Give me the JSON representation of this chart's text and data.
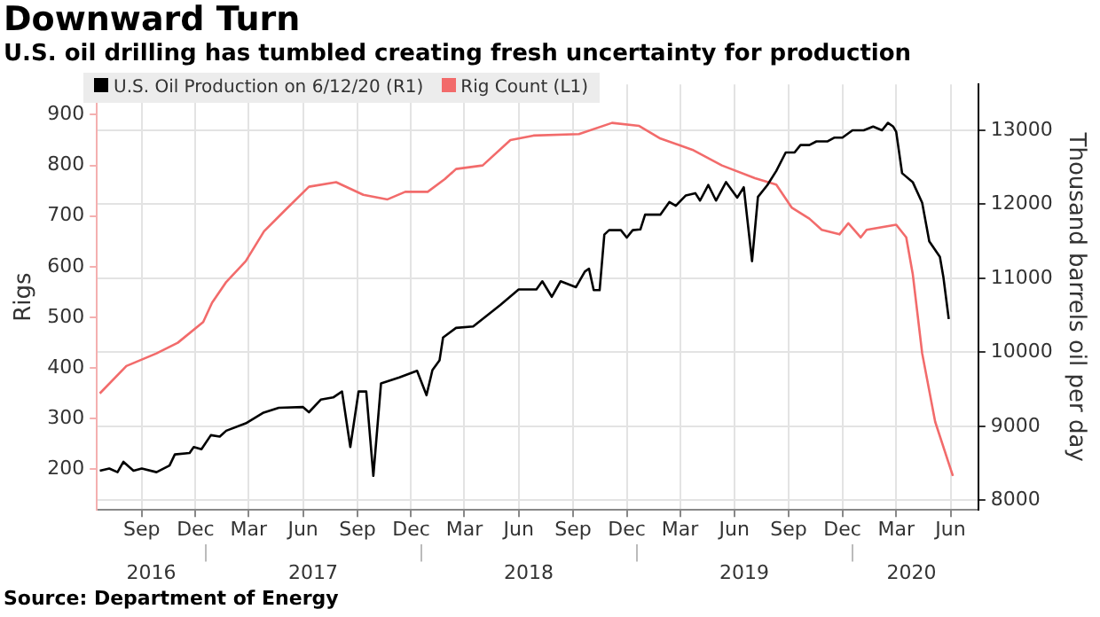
{
  "chart_data": {
    "type": "line",
    "title": "Downward Turn",
    "subtitle": "U.S. oil drilling has tumbled creating fresh uncertainty for production",
    "ylabel": "Rigs",
    "y2label": "Thousand barrels oil per day",
    "annotations": [
      "Source: Department of Energy"
    ],
    "xlim": [
      "2016-07-01",
      "2020-08-01"
    ],
    "xticks": [
      {
        "value": "2016-09-15",
        "label": "Sep"
      },
      {
        "value": "2016-12-15",
        "label": "Dec"
      },
      {
        "value": "2017-03-15",
        "label": "Mar"
      },
      {
        "value": "2017-06-15",
        "label": "Jun"
      },
      {
        "value": "2017-09-15",
        "label": "Sep"
      },
      {
        "value": "2017-12-15",
        "label": "Dec"
      },
      {
        "value": "2018-03-15",
        "label": "Mar"
      },
      {
        "value": "2018-06-15",
        "label": "Jun"
      },
      {
        "value": "2018-09-15",
        "label": "Sep"
      },
      {
        "value": "2018-12-15",
        "label": "Dec"
      },
      {
        "value": "2019-03-15",
        "label": "Mar"
      },
      {
        "value": "2019-06-15",
        "label": "Jun"
      },
      {
        "value": "2019-09-15",
        "label": "Sep"
      },
      {
        "value": "2019-12-15",
        "label": "Dec"
      },
      {
        "value": "2020-03-15",
        "label": "Mar"
      },
      {
        "value": "2020-06-15",
        "label": "Jun"
      }
    ],
    "x2lim": [
      "2016-07-01",
      "2020-08-01"
    ],
    "x2ticks": [
      {
        "value": "2016-10-01",
        "label": "2016"
      },
      {
        "value": "2017-01-01",
        "label": null
      },
      {
        "value": "2017-07-02",
        "label": "2017"
      },
      {
        "value": "2018-01-01",
        "label": null
      },
      {
        "value": "2018-07-02",
        "label": "2018"
      },
      {
        "value": "2019-01-01",
        "label": null
      },
      {
        "value": "2019-07-02",
        "label": "2019"
      },
      {
        "value": "2020-01-01",
        "label": null
      },
      {
        "value": "2020-04-10",
        "label": "2020"
      }
    ],
    "ylim": [
      120,
      960
    ],
    "yticks": [
      200,
      300,
      400,
      500,
      600,
      700,
      800,
      900
    ],
    "y2lim": [
      7870,
      13620
    ],
    "y2ticks": [
      8000,
      9000,
      10000,
      11000,
      12000,
      13000
    ],
    "grid": true,
    "legend": "top left",
    "marker": "none",
    "line_style": "solid",
    "series": [
      {
        "name": "U.S. Oil Production on 6/12/20 (R1)",
        "color": "#000000",
        "axis": "y2",
        "x": [
          "2016-07-06",
          "2016-07-22",
          "2016-08-05",
          "2016-08-15",
          "2016-09-01",
          "2016-09-15",
          "2016-10-10",
          "2016-11-01",
          "2016-11-10",
          "2016-12-05",
          "2016-12-12",
          "2016-12-25",
          "2017-01-10",
          "2017-01-25",
          "2017-02-05",
          "2017-03-10",
          "2017-04-08",
          "2017-05-05",
          "2017-06-15",
          "2017-06-25",
          "2017-07-15",
          "2017-08-05",
          "2017-08-20",
          "2017-09-03",
          "2017-09-17",
          "2017-09-30",
          "2017-10-12",
          "2017-10-25",
          "2017-11-25",
          "2017-12-25",
          "2018-01-10",
          "2018-01-20",
          "2018-02-01",
          "2018-02-07",
          "2018-03-01",
          "2018-03-30",
          "2018-05-15",
          "2018-06-15",
          "2018-07-15",
          "2018-07-25",
          "2018-08-10",
          "2018-08-25",
          "2018-09-20",
          "2018-10-05",
          "2018-10-12",
          "2018-10-20",
          "2018-10-30",
          "2018-11-07",
          "2018-11-15",
          "2018-12-05",
          "2018-12-15",
          "2018-12-25",
          "2019-01-07",
          "2019-01-15",
          "2019-02-10",
          "2019-02-25",
          "2019-03-08",
          "2019-03-25",
          "2019-04-10",
          "2019-04-18",
          "2019-05-02",
          "2019-05-15",
          "2019-06-01",
          "2019-06-20",
          "2019-07-01",
          "2019-07-15",
          "2019-07-25",
          "2019-08-10",
          "2019-08-25",
          "2019-09-10",
          "2019-09-25",
          "2019-10-05",
          "2019-10-20",
          "2019-11-01",
          "2019-11-20",
          "2019-12-01",
          "2019-12-15",
          "2020-01-01",
          "2020-01-20",
          "2020-02-05",
          "2020-02-20",
          "2020-03-01",
          "2020-03-10",
          "2020-03-15",
          "2020-03-25",
          "2020-04-12",
          "2020-04-28",
          "2020-05-10",
          "2020-05-28",
          "2020-06-03",
          "2020-06-12"
        ],
        "values": [
          8400,
          8430,
          8380,
          8520,
          8400,
          8430,
          8380,
          8470,
          8620,
          8640,
          8720,
          8690,
          8880,
          8860,
          8940,
          9040,
          9180,
          9250,
          9260,
          9190,
          9360,
          9390,
          9470,
          8720,
          9470,
          9470,
          8330,
          9580,
          9660,
          9750,
          9420,
          9760,
          9890,
          10200,
          10330,
          10350,
          10640,
          10850,
          10850,
          10960,
          10750,
          10960,
          10880,
          11090,
          11130,
          10840,
          10840,
          11590,
          11650,
          11650,
          11550,
          11650,
          11660,
          11860,
          11860,
          12030,
          11980,
          12120,
          12150,
          12050,
          12260,
          12050,
          12300,
          12090,
          12230,
          11230,
          12100,
          12260,
          12450,
          12700,
          12700,
          12800,
          12800,
          12850,
          12850,
          12900,
          12900,
          13000,
          13000,
          13050,
          13000,
          13100,
          13050,
          12980,
          12420,
          12300,
          12020,
          11500,
          11290,
          11010,
          10450
        ]
      },
      {
        "name": "Rig Count (L1)",
        "color": "#f26b6b",
        "x": [
          "2016-07-06",
          "2016-08-20",
          "2016-10-10",
          "2016-11-15",
          "2016-12-28",
          "2017-01-12",
          "2017-02-05",
          "2017-03-10",
          "2017-04-10",
          "2017-05-15",
          "2017-06-25",
          "2017-08-10",
          "2017-09-25",
          "2017-11-05",
          "2017-12-05",
          "2018-01-12",
          "2018-02-10",
          "2018-03-01",
          "2018-04-15",
          "2018-06-01",
          "2018-07-10",
          "2018-09-25",
          "2018-11-20",
          "2019-01-05",
          "2019-02-10",
          "2019-04-05",
          "2019-05-25",
          "2019-07-20",
          "2019-08-25",
          "2019-09-20",
          "2019-10-20",
          "2019-11-10",
          "2019-12-10",
          "2019-12-25",
          "2020-01-15",
          "2020-01-25",
          "2020-03-15",
          "2020-04-01",
          "2020-04-12",
          "2020-04-28",
          "2020-05-20",
          "2020-06-10",
          "2020-06-19"
        ],
        "values": [
          350,
          404,
          429,
          450,
          491,
          529,
          570,
          611,
          670,
          711,
          758,
          767,
          742,
          733,
          748,
          748,
          773,
          793,
          800,
          850,
          859,
          862,
          884,
          878,
          853,
          831,
          800,
          775,
          762,
          717,
          695,
          673,
          664,
          686,
          658,
          673,
          683,
          658,
          586,
          429,
          294,
          219,
          187
        ]
      }
    ]
  }
}
